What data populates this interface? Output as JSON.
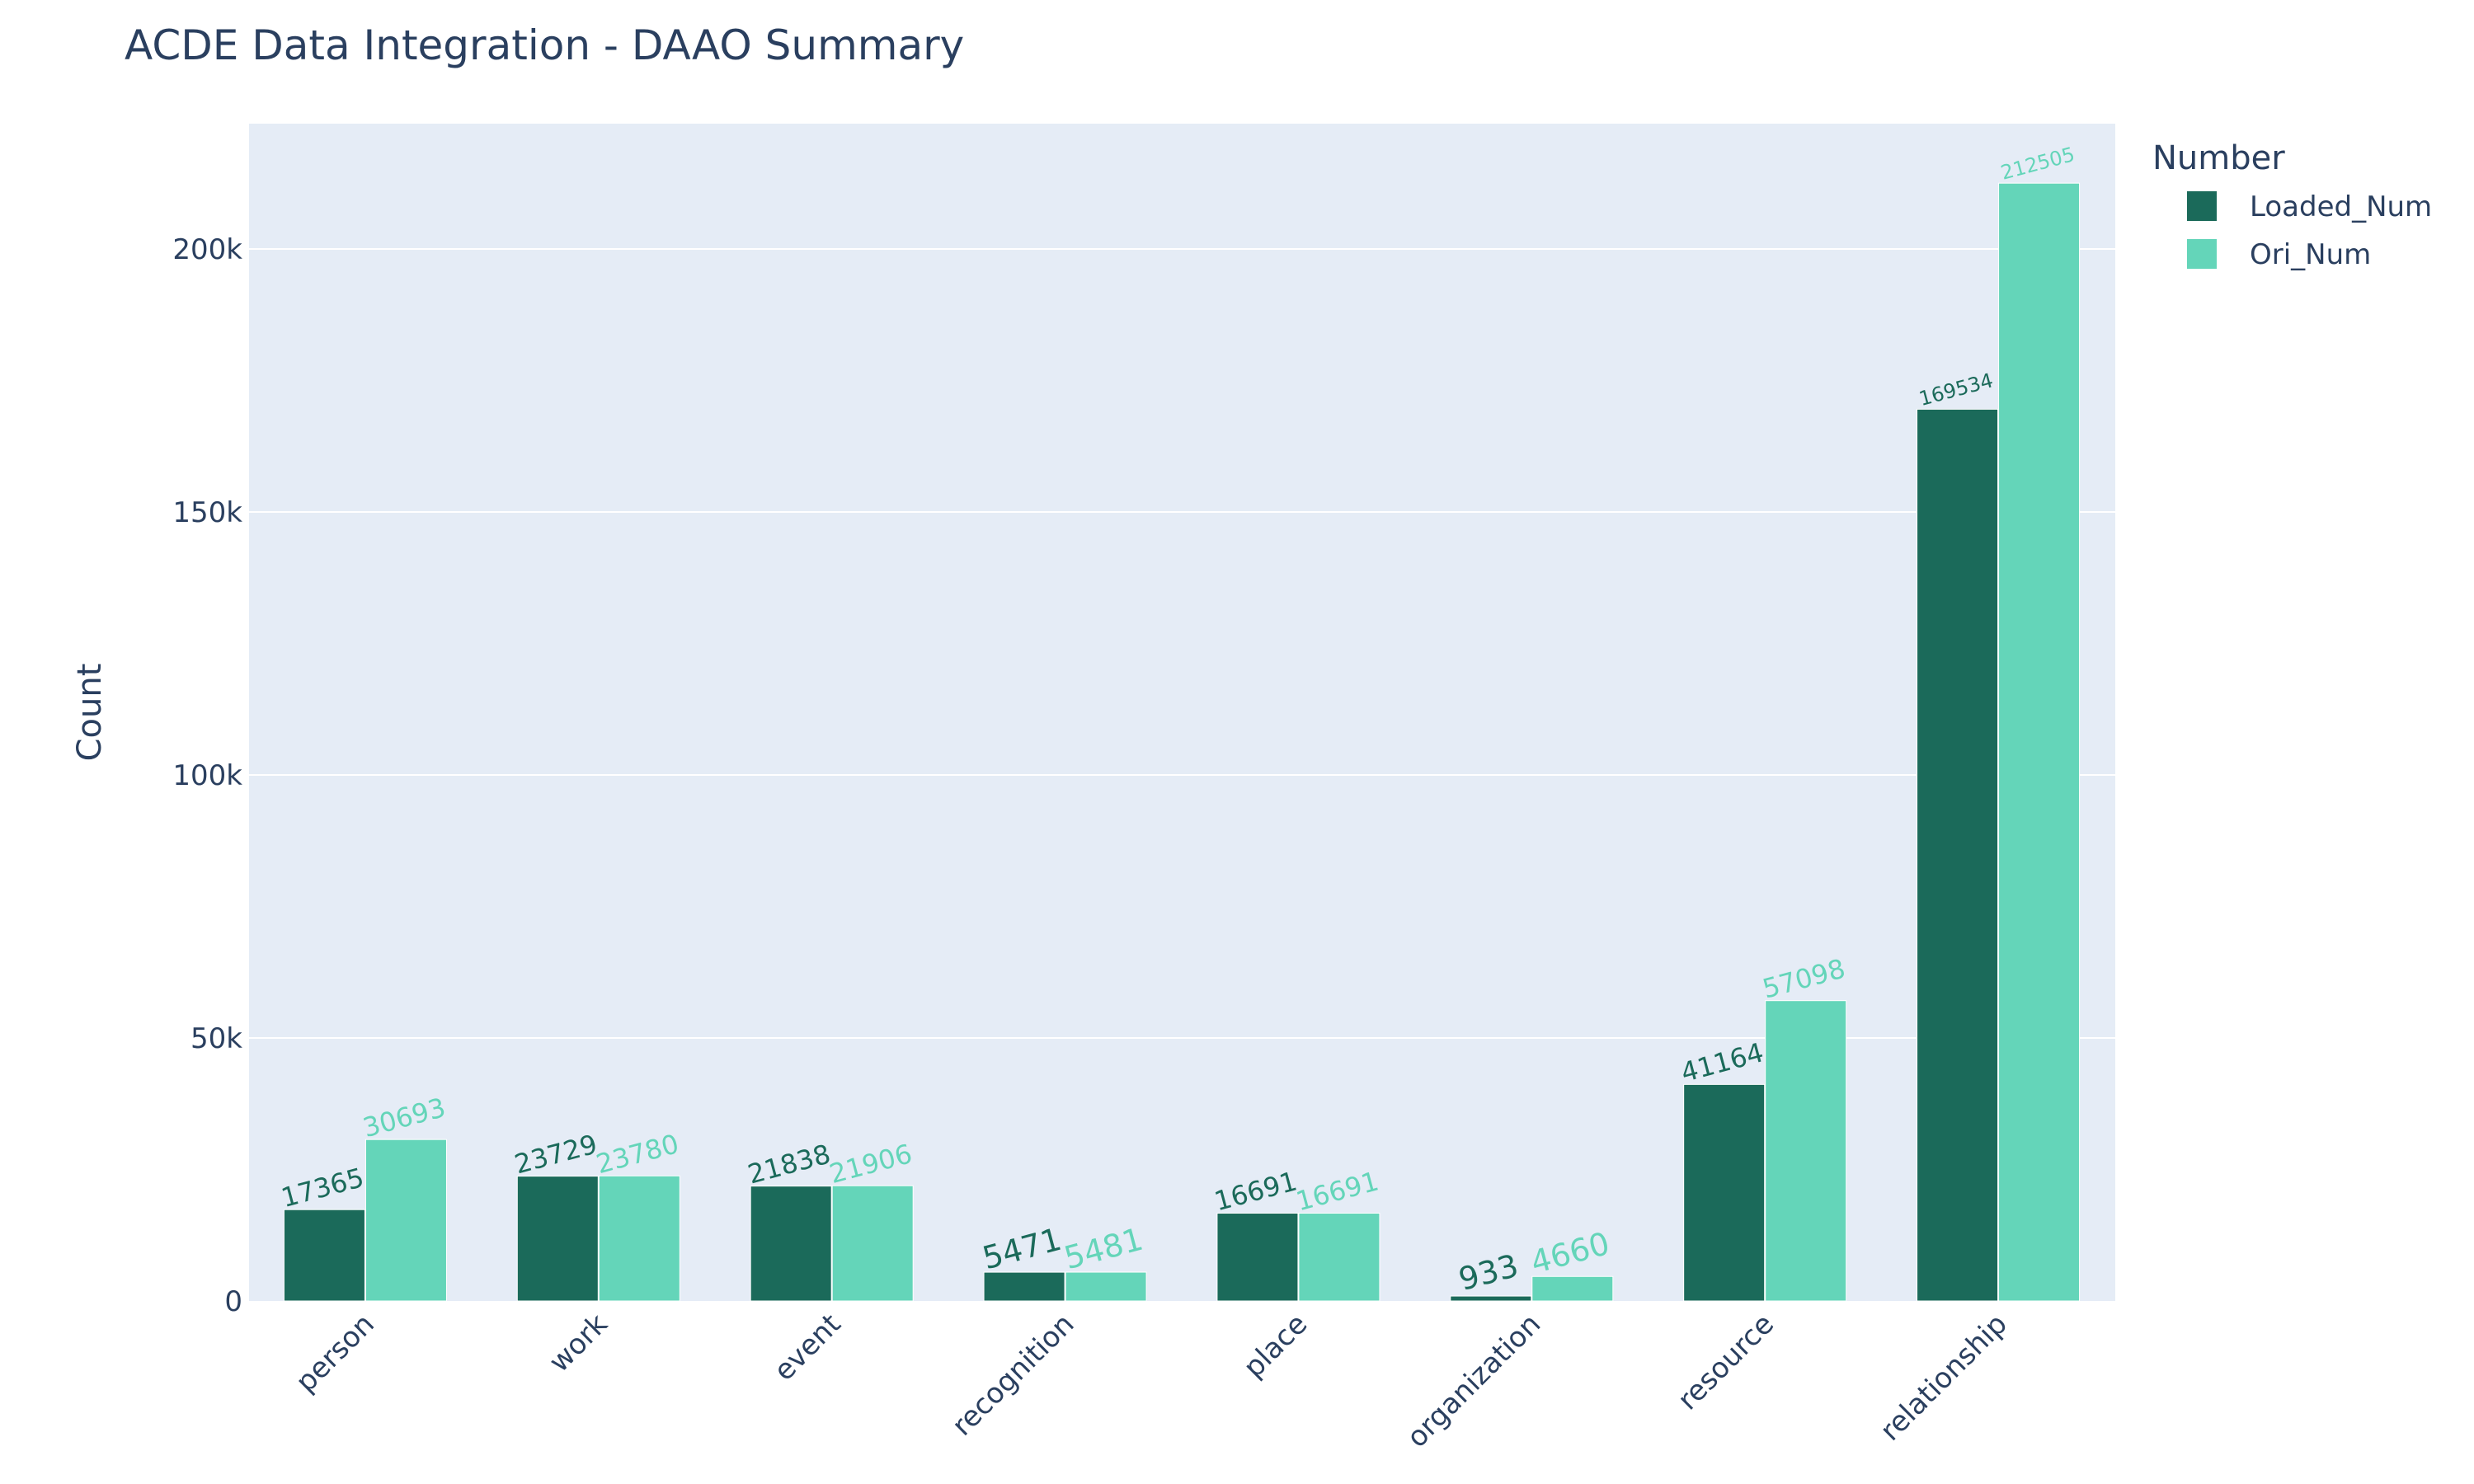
{
  "chart_data": {
    "type": "bar",
    "title": "ACDE Data Integration - DAAO Summary",
    "xlabel": "",
    "ylabel": "Count",
    "categories": [
      "person",
      "work",
      "event",
      "recognition",
      "place",
      "organization",
      "resource",
      "relationship"
    ],
    "series": [
      {
        "name": "Loaded_Num",
        "color": "#1b6a5a",
        "values": [
          17365,
          23729,
          21838,
          5471,
          16691,
          933,
          41164,
          169534
        ],
        "labels": [
          "17365",
          "23729",
          "21838",
          "5471",
          "16691",
          "933",
          "41164",
          "169534"
        ]
      },
      {
        "name": "Ori_Num",
        "color": "#64d5b9",
        "values": [
          30693,
          23780,
          21906,
          5481,
          16691,
          4660,
          57098,
          212505
        ],
        "labels": [
          "30693",
          "23780",
          "21906",
          "5481",
          "16691",
          "4660",
          "57098",
          "212505"
        ]
      }
    ],
    "ylim": [
      0,
      223820
    ],
    "yticks": [
      0,
      50000,
      100000,
      150000,
      200000
    ],
    "ytick_labels": [
      "0",
      "50k",
      "100k",
      "150k",
      "200k"
    ],
    "grid": true,
    "legend": {
      "title": "Number",
      "placement": "top-right"
    },
    "colors": {
      "plot_background": "#e5ecf6",
      "grid": "#ffffff",
      "text": "#2a3f5f"
    }
  }
}
